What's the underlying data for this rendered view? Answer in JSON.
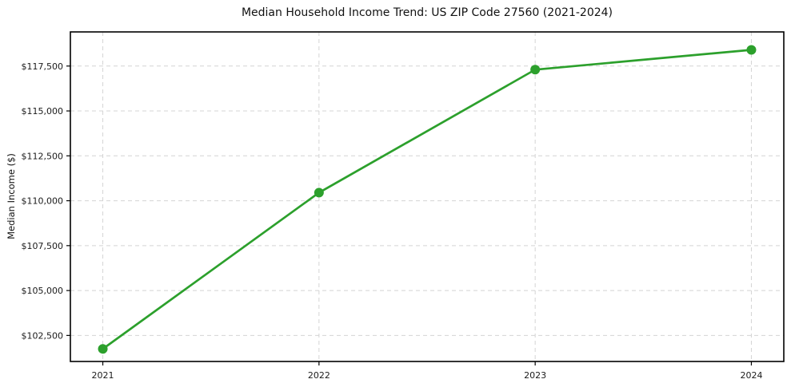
{
  "chart_data": {
    "type": "line",
    "title": "Median Household Income Trend: US ZIP Code 27560 (2021-2024)",
    "xlabel": "",
    "ylabel": "Median Income ($)",
    "x": [
      2021,
      2022,
      2023,
      2024
    ],
    "series": [
      {
        "name": "Median Household Income",
        "values": [
          101750,
          110450,
          117300,
          118400
        ]
      }
    ],
    "xticks": [
      2021,
      2022,
      2023,
      2024
    ],
    "xtick_labels": [
      "2021",
      "2022",
      "2023",
      "2024"
    ],
    "yticks": [
      102500,
      105000,
      107500,
      110000,
      112500,
      115000,
      117500
    ],
    "ytick_labels": [
      "$102,500",
      "$105,000",
      "$107,500",
      "$110,000",
      "$112,500",
      "$115,000",
      "$117,500"
    ],
    "xlim": [
      2020.85,
      2024.15
    ],
    "ylim": [
      101050,
      119400
    ],
    "grid": true,
    "grid_style": "dashed",
    "legend": "none",
    "colors": {
      "line": "#2ca02c",
      "marker": "#2ca02c",
      "grid": "#d4d4d4",
      "frame": "#000000",
      "background": "#ffffff",
      "text": "#1a1a1a"
    }
  }
}
